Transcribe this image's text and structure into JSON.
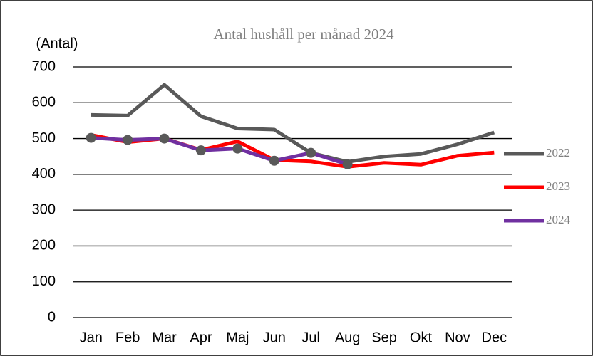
{
  "chart_data": {
    "type": "line",
    "title": "Antal hushåll per månad 2024",
    "y_label": "(Antal)",
    "categories": [
      "Jan",
      "Feb",
      "Mar",
      "Apr",
      "Maj",
      "Jun",
      "Jul",
      "Aug",
      "Sep",
      "Okt",
      "Nov",
      "Dec"
    ],
    "series": [
      {
        "name": "2022",
        "color": "#595959",
        "values": [
          566,
          564,
          650,
          562,
          528,
          525,
          460,
          435,
          450,
          457,
          484,
          517
        ]
      },
      {
        "name": "2023",
        "color": "#ff0000",
        "values": [
          510,
          490,
          500,
          468,
          492,
          440,
          436,
          421,
          432,
          427,
          452,
          461
        ]
      },
      {
        "name": "2024",
        "color": "#7030a0",
        "marker_color": "#595959",
        "values": [
          502,
          496,
          500,
          467,
          472,
          438,
          460,
          428,
          null,
          null,
          null,
          null
        ]
      }
    ],
    "ylim": [
      0,
      700
    ],
    "yticks": [
      0,
      100,
      200,
      300,
      400,
      500,
      600,
      700
    ],
    "grid": true
  }
}
